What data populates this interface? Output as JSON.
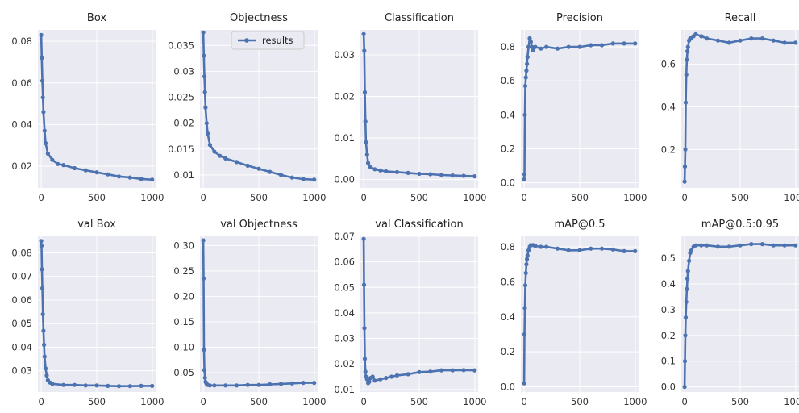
{
  "figure": {
    "background": "#ffffff",
    "panel_background": "#eaeaf2",
    "grid_color": "#ffffff",
    "line_color": "#4c72b0"
  },
  "legend": {
    "label": "results"
  },
  "chart_data": [
    {
      "type": "line",
      "title": "Box",
      "xlabel": "",
      "ylabel": "",
      "xlim": [
        -30,
        1030
      ],
      "ylim": [
        0.0095,
        0.0855
      ],
      "xticks": [
        0,
        500,
        1000
      ],
      "yticks": [
        0.02,
        0.04,
        0.06,
        0.08
      ],
      "tick_decimals": 2,
      "series": [
        {
          "name": "results",
          "x": [
            0,
            5,
            10,
            15,
            20,
            30,
            40,
            60,
            100,
            150,
            200,
            300,
            400,
            500,
            600,
            700,
            800,
            900,
            999
          ],
          "y": [
            0.083,
            0.072,
            0.061,
            0.053,
            0.046,
            0.037,
            0.031,
            0.026,
            0.023,
            0.021,
            0.0205,
            0.019,
            0.018,
            0.017,
            0.016,
            0.015,
            0.0145,
            0.0138,
            0.0135
          ]
        }
      ]
    },
    {
      "type": "line",
      "title": "Objectness",
      "xlabel": "",
      "ylabel": "",
      "xlim": [
        -30,
        1030
      ],
      "ylim": [
        0.0075,
        0.038
      ],
      "xticks": [
        0,
        500,
        1000
      ],
      "yticks": [
        0.01,
        0.015,
        0.02,
        0.025,
        0.03,
        0.035
      ],
      "tick_decimals": 3,
      "series": [
        {
          "name": "results",
          "x": [
            0,
            5,
            10,
            15,
            20,
            30,
            40,
            60,
            100,
            150,
            200,
            300,
            400,
            500,
            600,
            700,
            800,
            900,
            999
          ],
          "y": [
            0.0375,
            0.033,
            0.029,
            0.026,
            0.023,
            0.02,
            0.018,
            0.0158,
            0.0145,
            0.0137,
            0.0132,
            0.0125,
            0.0118,
            0.0112,
            0.0106,
            0.01,
            0.0095,
            0.0092,
            0.0091
          ]
        }
      ]
    },
    {
      "type": "line",
      "title": "Classification",
      "xlabel": "",
      "ylabel": "",
      "xlim": [
        -30,
        1030
      ],
      "ylim": [
        -0.002,
        0.036
      ],
      "xticks": [
        0,
        500,
        1000
      ],
      "yticks": [
        0.0,
        0.01,
        0.02,
        0.03
      ],
      "tick_decimals": 2,
      "series": [
        {
          "name": "results",
          "x": [
            0,
            5,
            10,
            15,
            20,
            30,
            40,
            60,
            100,
            150,
            200,
            300,
            400,
            500,
            600,
            700,
            800,
            900,
            999
          ],
          "y": [
            0.035,
            0.031,
            0.021,
            0.014,
            0.009,
            0.006,
            0.004,
            0.003,
            0.0025,
            0.0022,
            0.002,
            0.0018,
            0.0016,
            0.0014,
            0.0013,
            0.0011,
            0.001,
            0.0009,
            0.0008
          ]
        }
      ]
    },
    {
      "type": "line",
      "title": "Precision",
      "xlabel": "",
      "ylabel": "",
      "xlim": [
        -30,
        1030
      ],
      "ylim": [
        -0.03,
        0.9
      ],
      "xticks": [
        0,
        500,
        1000
      ],
      "yticks": [
        0.0,
        0.2,
        0.4,
        0.6,
        0.8
      ],
      "tick_decimals": 1,
      "series": [
        {
          "name": "results",
          "x": [
            0,
            3,
            6,
            10,
            15,
            20,
            25,
            30,
            40,
            50,
            60,
            70,
            80,
            100,
            150,
            200,
            300,
            400,
            500,
            600,
            700,
            800,
            900,
            999
          ],
          "y": [
            0.02,
            0.05,
            0.4,
            0.57,
            0.62,
            0.66,
            0.7,
            0.74,
            0.8,
            0.85,
            0.83,
            0.8,
            0.78,
            0.8,
            0.79,
            0.8,
            0.79,
            0.8,
            0.8,
            0.81,
            0.81,
            0.82,
            0.82,
            0.82
          ]
        }
      ]
    },
    {
      "type": "line",
      "title": "Recall",
      "xlabel": "",
      "ylabel": "",
      "xlim": [
        -30,
        1030
      ],
      "ylim": [
        0.02,
        0.76
      ],
      "xticks": [
        0,
        500,
        1000
      ],
      "yticks": [
        0.2,
        0.4,
        0.6
      ],
      "tick_decimals": 1,
      "series": [
        {
          "name": "results",
          "x": [
            0,
            3,
            6,
            10,
            15,
            20,
            25,
            30,
            40,
            50,
            60,
            80,
            100,
            150,
            200,
            300,
            400,
            500,
            600,
            700,
            800,
            900,
            999
          ],
          "y": [
            0.05,
            0.12,
            0.2,
            0.42,
            0.55,
            0.62,
            0.66,
            0.68,
            0.71,
            0.72,
            0.72,
            0.73,
            0.74,
            0.73,
            0.72,
            0.71,
            0.7,
            0.71,
            0.72,
            0.72,
            0.71,
            0.7,
            0.7
          ]
        }
      ]
    },
    {
      "type": "line",
      "title": "val Box",
      "xlabel": "",
      "ylabel": "",
      "xlim": [
        -30,
        1030
      ],
      "ylim": [
        0.021,
        0.087
      ],
      "xticks": [
        0,
        500,
        1000
      ],
      "yticks": [
        0.03,
        0.04,
        0.05,
        0.06,
        0.07,
        0.08
      ],
      "tick_decimals": 2,
      "series": [
        {
          "name": "results",
          "x": [
            0,
            3,
            6,
            10,
            15,
            20,
            25,
            30,
            40,
            50,
            60,
            80,
            100,
            200,
            300,
            400,
            500,
            600,
            700,
            800,
            900,
            999
          ],
          "y": [
            0.085,
            0.083,
            0.073,
            0.065,
            0.054,
            0.047,
            0.041,
            0.036,
            0.031,
            0.028,
            0.026,
            0.025,
            0.0245,
            0.024,
            0.024,
            0.0238,
            0.0238,
            0.0236,
            0.0235,
            0.0235,
            0.0236,
            0.0236
          ]
        }
      ]
    },
    {
      "type": "line",
      "title": "val Objectness",
      "xlabel": "",
      "ylabel": "",
      "xlim": [
        -30,
        1030
      ],
      "ylim": [
        0.012,
        0.318
      ],
      "xticks": [
        0,
        500,
        1000
      ],
      "yticks": [
        0.05,
        0.1,
        0.15,
        0.2,
        0.25,
        0.3
      ],
      "tick_decimals": 2,
      "series": [
        {
          "name": "results",
          "x": [
            0,
            3,
            6,
            10,
            15,
            20,
            30,
            40,
            60,
            100,
            200,
            300,
            400,
            500,
            600,
            700,
            800,
            900,
            999
          ],
          "y": [
            0.31,
            0.235,
            0.095,
            0.055,
            0.04,
            0.032,
            0.028,
            0.026,
            0.025,
            0.025,
            0.025,
            0.025,
            0.026,
            0.026,
            0.027,
            0.028,
            0.029,
            0.03,
            0.03
          ]
        }
      ]
    },
    {
      "type": "line",
      "title": "val Classification",
      "xlabel": "",
      "ylabel": "",
      "xlim": [
        -30,
        1030
      ],
      "ylim": [
        0.009,
        0.07
      ],
      "xticks": [
        0,
        500,
        1000
      ],
      "yticks": [
        0.01,
        0.02,
        0.03,
        0.04,
        0.05,
        0.06,
        0.07
      ],
      "tick_decimals": 2,
      "series": [
        {
          "name": "results",
          "x": [
            0,
            3,
            6,
            10,
            15,
            20,
            30,
            40,
            50,
            60,
            80,
            100,
            150,
            200,
            250,
            300,
            400,
            500,
            600,
            700,
            800,
            900,
            999
          ],
          "y": [
            0.069,
            0.051,
            0.034,
            0.022,
            0.017,
            0.015,
            0.014,
            0.0125,
            0.013,
            0.0145,
            0.015,
            0.0135,
            0.014,
            0.0145,
            0.015,
            0.0155,
            0.016,
            0.0168,
            0.017,
            0.0175,
            0.0175,
            0.0176,
            0.0175
          ]
        }
      ]
    },
    {
      "type": "line",
      "title": "mAP@0.5",
      "xlabel": "",
      "ylabel": "",
      "xlim": [
        -30,
        1030
      ],
      "ylim": [
        -0.03,
        0.86
      ],
      "xticks": [
        0,
        500,
        1000
      ],
      "yticks": [
        0.0,
        0.2,
        0.4,
        0.6,
        0.8
      ],
      "tick_decimals": 1,
      "series": [
        {
          "name": "results",
          "x": [
            0,
            3,
            6,
            10,
            15,
            20,
            25,
            30,
            40,
            50,
            60,
            80,
            100,
            150,
            200,
            300,
            400,
            500,
            600,
            700,
            800,
            900,
            999
          ],
          "y": [
            0.02,
            0.3,
            0.45,
            0.58,
            0.65,
            0.7,
            0.73,
            0.75,
            0.78,
            0.8,
            0.81,
            0.81,
            0.805,
            0.8,
            0.8,
            0.79,
            0.78,
            0.78,
            0.79,
            0.79,
            0.785,
            0.775,
            0.775
          ]
        }
      ]
    },
    {
      "type": "line",
      "title": "mAP@0.5:0.95",
      "xlabel": "",
      "ylabel": "",
      "xlim": [
        -30,
        1030
      ],
      "ylim": [
        -0.02,
        0.585
      ],
      "xticks": [
        0,
        500,
        1000
      ],
      "yticks": [
        0.0,
        0.1,
        0.2,
        0.3,
        0.4,
        0.5
      ],
      "tick_decimals": 1,
      "series": [
        {
          "name": "results",
          "x": [
            0,
            3,
            6,
            10,
            15,
            20,
            25,
            30,
            40,
            50,
            60,
            80,
            100,
            150,
            200,
            300,
            400,
            500,
            600,
            700,
            800,
            900,
            999
          ],
          "y": [
            0.0,
            0.1,
            0.2,
            0.27,
            0.33,
            0.38,
            0.42,
            0.45,
            0.49,
            0.52,
            0.53,
            0.545,
            0.55,
            0.55,
            0.55,
            0.545,
            0.545,
            0.55,
            0.555,
            0.555,
            0.55,
            0.55,
            0.55
          ]
        }
      ]
    }
  ]
}
